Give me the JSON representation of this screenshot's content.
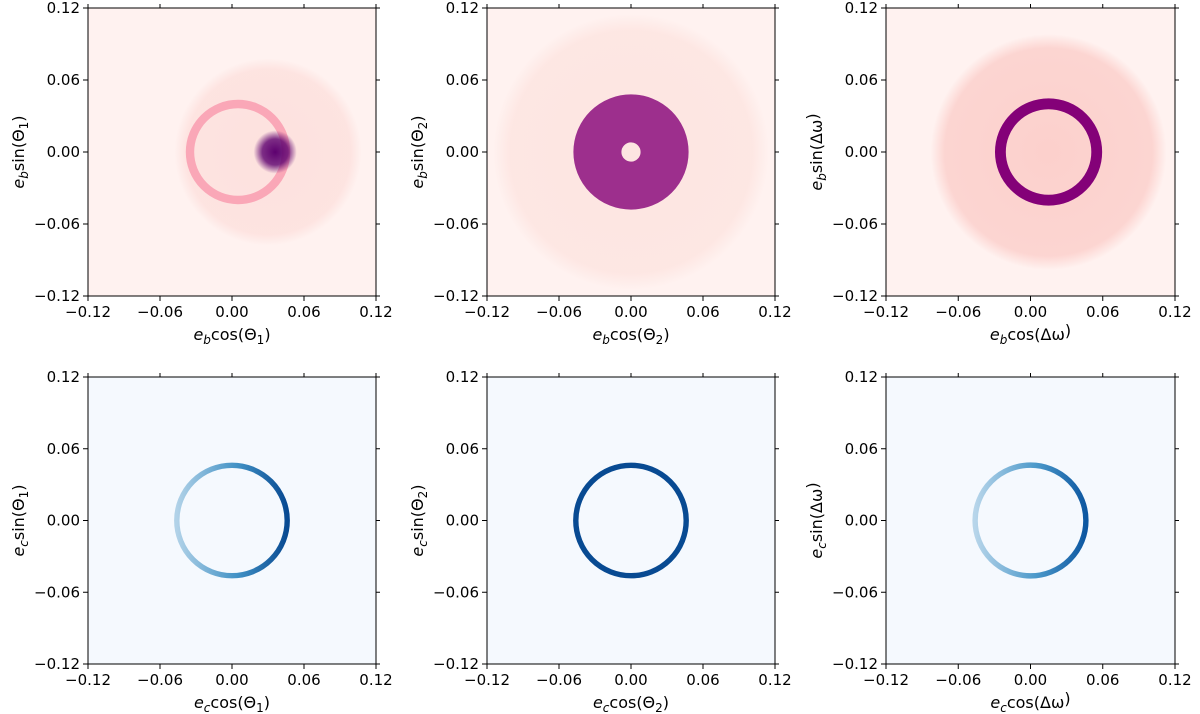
{
  "chart_data": [
    {
      "type": "heatmap",
      "panel": "top-left",
      "xlabel": "e_b cos(Θ1)",
      "xlabel_main": "e",
      "xlabel_sub": "b",
      "xlabel_rest": "cos(Θ",
      "xlabel_sub2": "1",
      "xlabel_end": ")",
      "ylabel": "e_b sin(Θ1)",
      "ylabel_main": "e",
      "ylabel_sub": "b",
      "ylabel_rest": "sin(Θ",
      "ylabel_sub2": "1",
      "ylabel_end": ")",
      "xlim": [
        -0.12,
        0.12
      ],
      "ylim": [
        -0.12,
        0.12
      ],
      "xticks": [
        "−0.12",
        "−0.06",
        "0.00",
        "0.06",
        "0.12"
      ],
      "yticks": [
        "−0.12",
        "−0.06",
        "0.00",
        "0.06",
        "0.12"
      ],
      "colormap": "RdPu",
      "background_color": "#fff2f0",
      "density_features": [
        {
          "kind": "disk",
          "center": [
            0.03,
            0.0
          ],
          "radius": 0.078,
          "level": 0.12
        },
        {
          "kind": "ring",
          "center": [
            0.005,
            0.0
          ],
          "radius": 0.04,
          "width": 0.007,
          "level": 0.35
        },
        {
          "kind": "blob",
          "center": [
            0.036,
            0.0
          ],
          "radius": 0.018,
          "level": 0.95
        }
      ]
    },
    {
      "type": "heatmap",
      "panel": "top-middle",
      "xlabel": "e_b cos(Θ2)",
      "xlabel_main": "e",
      "xlabel_sub": "b",
      "xlabel_rest": "cos(Θ",
      "xlabel_sub2": "2",
      "xlabel_end": ")",
      "ylabel": "e_b sin(Θ2)",
      "ylabel_main": "e",
      "ylabel_sub": "b",
      "ylabel_rest": "sin(Θ",
      "ylabel_sub2": "2",
      "ylabel_end": ")",
      "xlim": [
        -0.12,
        0.12
      ],
      "ylim": [
        -0.12,
        0.12
      ],
      "xticks": [
        "−0.12",
        "−0.06",
        "0.00",
        "0.06",
        "0.12"
      ],
      "yticks": [
        "−0.12",
        "−0.06",
        "0.00",
        "0.06",
        "0.12"
      ],
      "colormap": "RdPu",
      "background_color": "#fff2f0",
      "density_features": [
        {
          "kind": "disk",
          "center": [
            0.0,
            0.0
          ],
          "radius": 0.115,
          "level": 0.1
        },
        {
          "kind": "ring",
          "center": [
            0.0,
            0.0
          ],
          "radius": 0.028,
          "width": 0.04,
          "level": 0.85
        }
      ]
    },
    {
      "type": "heatmap",
      "panel": "top-right",
      "xlabel": "e_b cos(Δω)",
      "xlabel_main": "e",
      "xlabel_sub": "b",
      "xlabel_rest": "cos(Δω",
      "xlabel_sub2": "",
      "xlabel_end": ")",
      "ylabel": "e_b sin(Δω)",
      "ylabel_main": "e",
      "ylabel_sub": "b",
      "ylabel_rest": "sin(Δω",
      "ylabel_sub2": "",
      "ylabel_end": ")",
      "xlim": [
        -0.12,
        0.12
      ],
      "ylim": [
        -0.12,
        0.12
      ],
      "xticks": [
        "−0.12",
        "−0.06",
        "0.00",
        "0.06",
        "0.12"
      ],
      "yticks": [
        "−0.12",
        "−0.06",
        "0.00",
        "0.06",
        "0.12"
      ],
      "colormap": "RdPu",
      "background_color": "#fff2f0",
      "density_features": [
        {
          "kind": "disk",
          "center": [
            0.015,
            0.0
          ],
          "radius": 0.098,
          "level": 0.2
        },
        {
          "kind": "ring",
          "center": [
            0.015,
            0.0
          ],
          "radius": 0.04,
          "width": 0.009,
          "level": 0.85
        }
      ]
    },
    {
      "type": "heatmap",
      "panel": "bottom-left",
      "xlabel": "e_c cos(Θ1)",
      "xlabel_main": "e",
      "xlabel_sub": "c",
      "xlabel_rest": "cos(Θ",
      "xlabel_sub2": "1",
      "xlabel_end": ")",
      "ylabel": "e_c sin(Θ1)",
      "ylabel_main": "e",
      "ylabel_sub": "c",
      "ylabel_rest": "sin(Θ",
      "ylabel_sub2": "1",
      "ylabel_end": ")",
      "xlim": [
        -0.12,
        0.12
      ],
      "ylim": [
        -0.12,
        0.12
      ],
      "xticks": [
        "−0.12",
        "−0.06",
        "0.00",
        "0.06",
        "0.12"
      ],
      "yticks": [
        "−0.12",
        "−0.06",
        "0.00",
        "0.06",
        "0.12"
      ],
      "colormap": "Blues",
      "background_color": "#f5f9fe",
      "density_features": [
        {
          "kind": "ring",
          "center": [
            0.0,
            0.0
          ],
          "radius": 0.046,
          "width": 0.0045,
          "level": 0.9,
          "asymmetry": "brighter at positive x"
        }
      ]
    },
    {
      "type": "heatmap",
      "panel": "bottom-middle",
      "xlabel": "e_c cos(Θ2)",
      "xlabel_main": "e",
      "xlabel_sub": "c",
      "xlabel_rest": "cos(Θ",
      "xlabel_sub2": "2",
      "xlabel_end": ")",
      "ylabel": "e_c sin(Θ2)",
      "ylabel_main": "e",
      "ylabel_sub": "c",
      "ylabel_rest": "sin(Θ",
      "ylabel_sub2": "2",
      "ylabel_end": ")",
      "xlim": [
        -0.12,
        0.12
      ],
      "ylim": [
        -0.12,
        0.12
      ],
      "xticks": [
        "−0.12",
        "−0.06",
        "0.00",
        "0.06",
        "0.12"
      ],
      "yticks": [
        "−0.12",
        "−0.06",
        "0.00",
        "0.06",
        "0.12"
      ],
      "colormap": "Blues",
      "background_color": "#f5f9fe",
      "density_features": [
        {
          "kind": "ring",
          "center": [
            0.0,
            0.0
          ],
          "radius": 0.046,
          "width": 0.0045,
          "level": 0.9,
          "asymmetry": "uniform"
        }
      ]
    },
    {
      "type": "heatmap",
      "panel": "bottom-right",
      "xlabel": "e_c cos(Δω)",
      "xlabel_main": "e",
      "xlabel_sub": "c",
      "xlabel_rest": "cos(Δω",
      "xlabel_sub2": "",
      "xlabel_end": ")",
      "ylabel": "e_c sin(Δω)",
      "ylabel_main": "e",
      "ylabel_sub": "c",
      "ylabel_rest": "sin(Δω",
      "ylabel_sub2": "",
      "ylabel_end": ")",
      "xlim": [
        -0.12,
        0.12
      ],
      "ylim": [
        -0.12,
        0.12
      ],
      "xticks": [
        "−0.12",
        "−0.06",
        "0.00",
        "0.06",
        "0.12"
      ],
      "yticks": [
        "−0.12",
        "−0.06",
        "0.00",
        "0.06",
        "0.12"
      ],
      "colormap": "Blues",
      "background_color": "#f5f9fe",
      "density_features": [
        {
          "kind": "ring",
          "center": [
            0.0,
            0.0
          ],
          "radius": 0.046,
          "width": 0.0045,
          "level": 0.85,
          "asymmetry": "brighter at positive x"
        }
      ]
    }
  ]
}
